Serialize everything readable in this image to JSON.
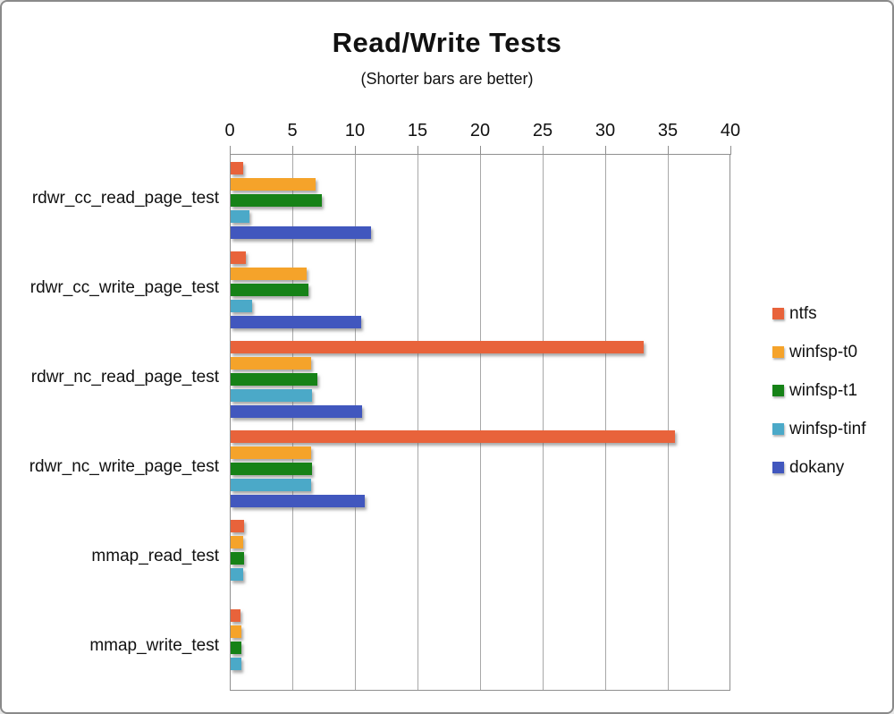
{
  "chart_data": {
    "type": "bar",
    "orientation": "horizontal",
    "title": "Read/Write Tests",
    "subtitle": "(Shorter bars are better)",
    "categories": [
      "rdwr_cc_read_page_test",
      "rdwr_cc_write_page_test",
      "rdwr_nc_read_page_test",
      "rdwr_nc_write_page_test",
      "mmap_read_test",
      "mmap_write_test"
    ],
    "series": [
      {
        "name": "ntfs",
        "color": "#e8633b",
        "values": [
          1.0,
          1.2,
          33.0,
          35.5,
          1.1,
          0.8
        ]
      },
      {
        "name": "winfsp-t0",
        "color": "#f5a32a",
        "values": [
          6.8,
          6.1,
          6.4,
          6.4,
          1.0,
          0.85
        ]
      },
      {
        "name": "winfsp-t1",
        "color": "#168217",
        "values": [
          7.3,
          6.2,
          6.9,
          6.5,
          1.1,
          0.85
        ]
      },
      {
        "name": "winfsp-tinf",
        "color": "#4ba9c8",
        "values": [
          1.5,
          1.7,
          6.5,
          6.4,
          1.0,
          0.85
        ]
      },
      {
        "name": "dokany",
        "color": "#4157be",
        "values": [
          11.2,
          10.4,
          10.5,
          10.7,
          0,
          0
        ]
      }
    ],
    "axis": {
      "min": 0,
      "max": 40,
      "step": 5,
      "position": "top",
      "tick_labels": [
        "0",
        "5",
        "10",
        "15",
        "20",
        "25",
        "30",
        "35",
        "40"
      ]
    },
    "legend": {
      "position": "right",
      "entries": [
        "ntfs",
        "winfsp-t0",
        "winfsp-t1",
        "winfsp-tinf",
        "dokany"
      ]
    },
    "grid": true
  }
}
